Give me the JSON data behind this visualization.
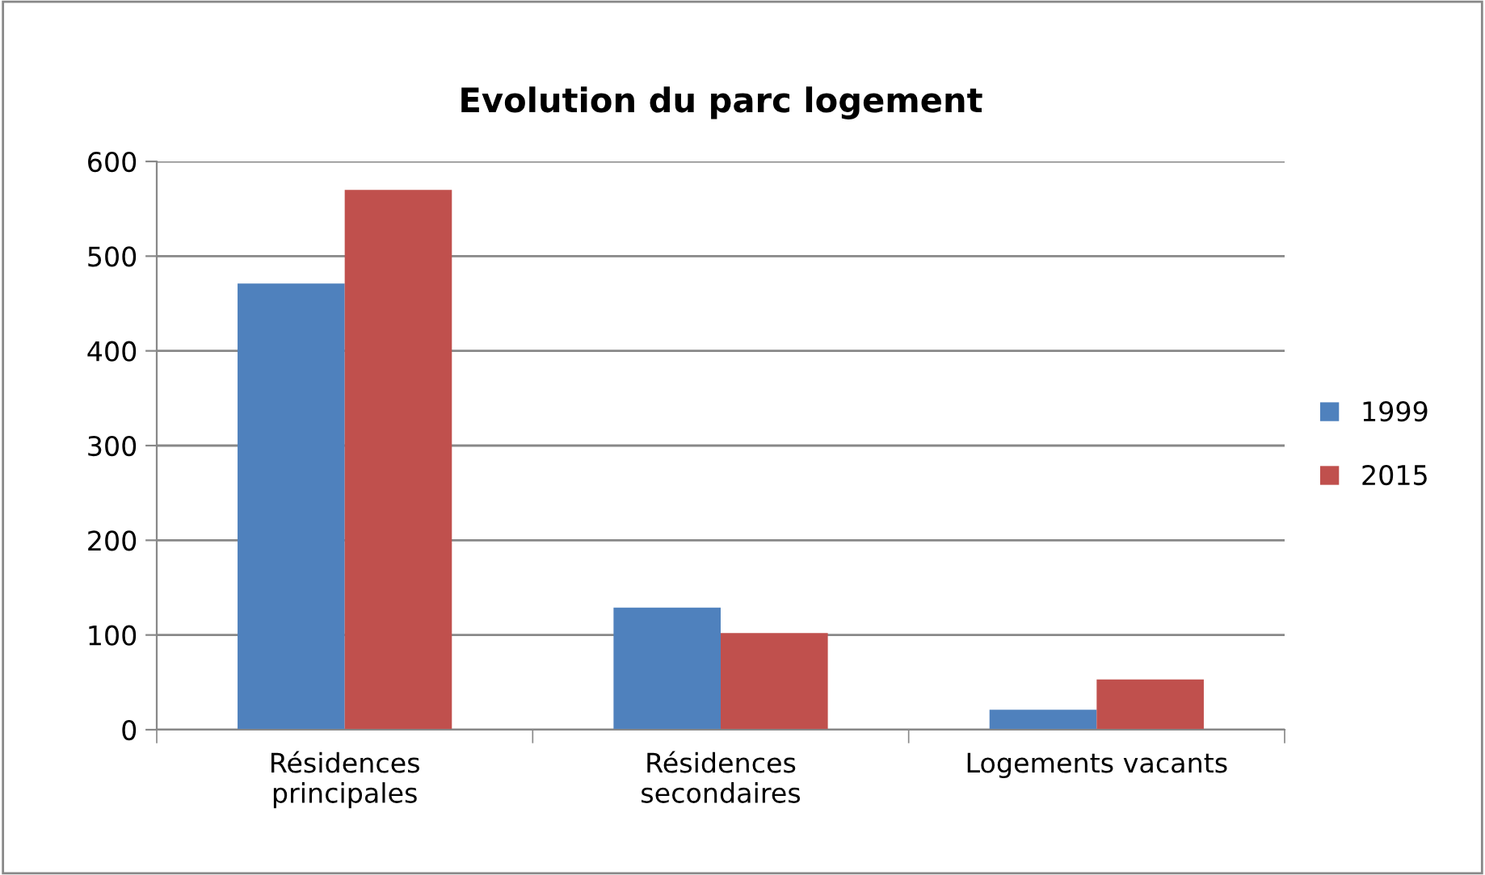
{
  "chart_data": {
    "type": "bar",
    "title": "Evolution du parc logement",
    "categories": [
      "Résidences\nprincipales",
      "Résidences\nsecondaires",
      "Logements vacants"
    ],
    "series": [
      {
        "name": "1999",
        "color": "#4f81bd",
        "values": [
          471,
          129,
          21
        ]
      },
      {
        "name": "2015",
        "color": "#c0504d",
        "values": [
          570,
          102,
          53
        ]
      }
    ],
    "ylim": [
      0,
      600
    ],
    "yticks": [
      0,
      100,
      200,
      300,
      400,
      500,
      600
    ],
    "grid": "y",
    "legend": "right"
  }
}
